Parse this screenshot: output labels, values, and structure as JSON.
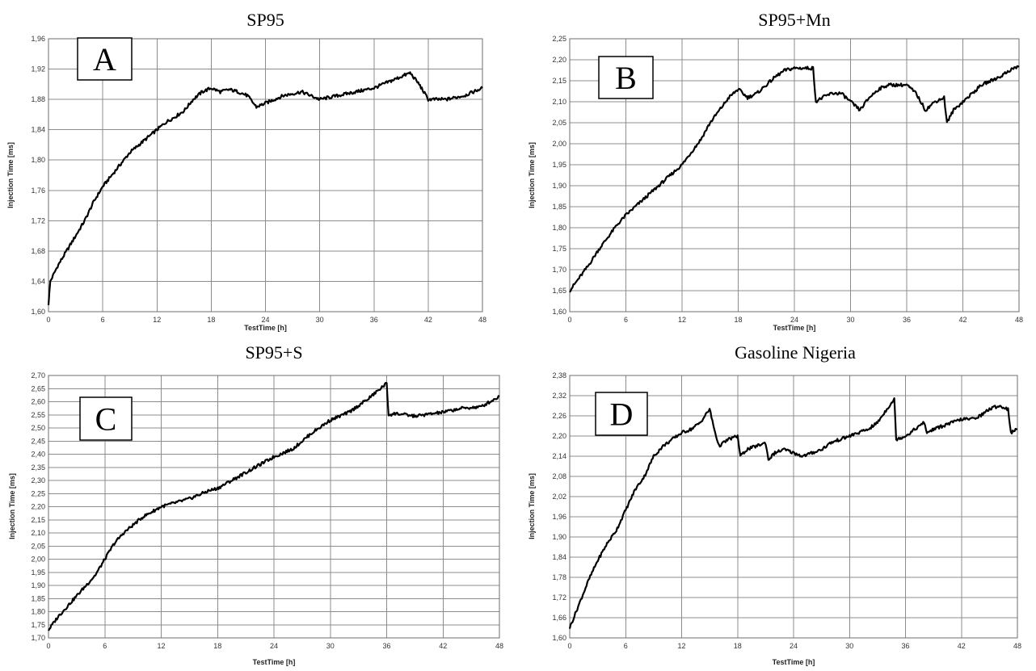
{
  "chart_data": [
    {
      "type": "line",
      "panel_title": "SP95",
      "letter": "A",
      "xlabel": "TestTime [h]",
      "ylabel": "Injection Time [ms]",
      "xlim": [
        0,
        48
      ],
      "ylim": [
        1.6,
        1.96
      ],
      "x_ticks": [
        "0",
        "6",
        "12",
        "18",
        "24",
        "30",
        "36",
        "42",
        "48"
      ],
      "y_ticks": [
        "1,60",
        "1,64",
        "1,68",
        "1,72",
        "1,76",
        "1,80",
        "1,84",
        "1,88",
        "1,92",
        "1,96"
      ],
      "grid": true,
      "series": [
        {
          "x": [
            0,
            0.2,
            1,
            2,
            3,
            4,
            5,
            6,
            7,
            8,
            9,
            10,
            11,
            12,
            13,
            14,
            15,
            16,
            17,
            18,
            19,
            20,
            21,
            22,
            23,
            24,
            26,
            28,
            30,
            32,
            34,
            36,
            38,
            39,
            40,
            41,
            42,
            44,
            46,
            47,
            48
          ],
          "y": [
            1.61,
            1.64,
            1.66,
            1.68,
            1.7,
            1.72,
            1.745,
            1.765,
            1.78,
            1.795,
            1.81,
            1.82,
            1.83,
            1.84,
            1.85,
            1.857,
            1.865,
            1.88,
            1.89,
            1.895,
            1.89,
            1.893,
            1.89,
            1.885,
            1.87,
            1.875,
            1.885,
            1.89,
            1.88,
            1.885,
            1.89,
            1.895,
            1.905,
            1.91,
            1.915,
            1.9,
            1.88,
            1.88,
            1.885,
            1.89,
            1.895
          ]
        }
      ]
    },
    {
      "type": "line",
      "panel_title": "SP95+Mn",
      "letter": "B",
      "xlabel": "TestTime [h]",
      "ylabel": "Injection Time [ms]",
      "xlim": [
        0,
        48
      ],
      "ylim": [
        1.6,
        2.25
      ],
      "x_ticks": [
        "0",
        "6",
        "12",
        "18",
        "24",
        "30",
        "36",
        "42",
        "48"
      ],
      "y_ticks": [
        "1,60",
        "1,65",
        "1,70",
        "1,75",
        "1,80",
        "1,85",
        "1,90",
        "1,95",
        "2,00",
        "2,05",
        "2,10",
        "2,15",
        "2,20",
        "2,25"
      ],
      "grid": true,
      "series": [
        {
          "x": [
            0,
            1,
            2,
            3,
            4,
            5,
            6,
            7,
            8,
            9,
            10,
            11,
            12,
            13,
            14,
            15,
            16,
            17,
            18,
            19,
            20,
            21,
            22,
            23,
            24,
            25,
            26,
            26.3,
            27,
            28,
            29,
            30,
            31,
            32,
            33,
            34,
            35,
            36,
            37,
            38,
            39,
            40,
            40.3,
            41,
            42,
            43,
            44,
            45,
            46,
            47,
            48
          ],
          "y": [
            1.65,
            1.68,
            1.71,
            1.745,
            1.775,
            1.805,
            1.83,
            1.85,
            1.87,
            1.89,
            1.91,
            1.93,
            1.95,
            1.98,
            2.01,
            2.05,
            2.08,
            2.11,
            2.13,
            2.11,
            2.12,
            2.14,
            2.16,
            2.175,
            2.18,
            2.18,
            2.18,
            2.1,
            2.11,
            2.12,
            2.12,
            2.1,
            2.08,
            2.11,
            2.13,
            2.14,
            2.14,
            2.14,
            2.12,
            2.08,
            2.1,
            2.11,
            2.05,
            2.08,
            2.1,
            2.12,
            2.14,
            2.15,
            2.16,
            2.175,
            2.185
          ]
        }
      ]
    },
    {
      "type": "line",
      "panel_title": "SP95+S",
      "letter": "C",
      "xlabel": "TestTime [h]",
      "ylabel": "Injection Time [ms]",
      "xlim": [
        0,
        48
      ],
      "ylim": [
        1.7,
        2.7
      ],
      "x_ticks": [
        "0",
        "6",
        "12",
        "18",
        "24",
        "30",
        "36",
        "42",
        "48"
      ],
      "y_ticks": [
        "1,70",
        "1,75",
        "1,80",
        "1,85",
        "1,90",
        "1,95",
        "2,00",
        "2,05",
        "2,10",
        "2,15",
        "2,20",
        "2,25",
        "2,30",
        "2,35",
        "2,40",
        "2,45",
        "2,50",
        "2,55",
        "2,60",
        "2,65",
        "2,70"
      ],
      "grid": true,
      "series": [
        {
          "x": [
            0,
            1,
            2,
            3,
            4,
            5,
            6,
            7,
            8,
            9,
            10,
            11,
            12,
            13,
            14,
            15,
            16,
            17,
            18,
            20,
            22,
            24,
            26,
            28,
            30,
            32,
            34,
            35,
            36,
            36.2,
            37,
            38,
            39,
            40,
            42,
            44,
            46,
            47,
            48
          ],
          "y": [
            1.73,
            1.78,
            1.82,
            1.86,
            1.9,
            1.94,
            2.0,
            2.06,
            2.1,
            2.13,
            2.16,
            2.18,
            2.2,
            2.21,
            2.22,
            2.23,
            2.245,
            2.26,
            2.27,
            2.31,
            2.35,
            2.39,
            2.42,
            2.48,
            2.53,
            2.56,
            2.61,
            2.64,
            2.67,
            2.55,
            2.555,
            2.55,
            2.545,
            2.55,
            2.56,
            2.575,
            2.58,
            2.6,
            2.62
          ]
        }
      ]
    },
    {
      "type": "line",
      "panel_title": "Gasoline Nigeria",
      "letter": "D",
      "xlabel": "TestTime [h]",
      "ylabel": "Injection Time [ms]",
      "xlim": [
        0,
        48
      ],
      "ylim": [
        1.6,
        2.38
      ],
      "x_ticks": [
        "0",
        "6",
        "12",
        "18",
        "24",
        "30",
        "36",
        "42",
        "48"
      ],
      "y_ticks": [
        "1,60",
        "1,66",
        "1,72",
        "1,78",
        "1,84",
        "1,90",
        "1,96",
        "2,02",
        "2,08",
        "2,14",
        "2,20",
        "2,26",
        "2,32",
        "2,38"
      ],
      "grid": true,
      "series": [
        {
          "x": [
            0,
            1,
            2,
            3,
            4,
            5,
            6,
            7,
            8,
            9,
            10,
            11,
            12,
            13,
            14,
            15,
            15.5,
            16,
            17,
            18,
            18.3,
            19,
            20,
            21,
            21.3,
            22,
            23,
            24,
            25,
            26,
            27,
            28,
            29,
            30,
            31,
            32,
            33,
            34,
            34.8,
            35,
            36,
            37,
            38,
            38.3,
            39,
            40,
            41,
            42,
            43,
            44,
            45,
            46,
            47,
            47.3,
            48
          ],
          "y": [
            1.63,
            1.7,
            1.77,
            1.83,
            1.88,
            1.92,
            1.98,
            2.04,
            2.08,
            2.14,
            2.17,
            2.19,
            2.21,
            2.22,
            2.24,
            2.28,
            2.22,
            2.17,
            2.19,
            2.2,
            2.14,
            2.16,
            2.17,
            2.18,
            2.13,
            2.15,
            2.16,
            2.15,
            2.14,
            2.15,
            2.16,
            2.18,
            2.19,
            2.2,
            2.21,
            2.22,
            2.24,
            2.28,
            2.31,
            2.19,
            2.2,
            2.22,
            2.24,
            2.21,
            2.22,
            2.23,
            2.24,
            2.25,
            2.25,
            2.26,
            2.28,
            2.29,
            2.28,
            2.21,
            2.22
          ]
        }
      ]
    }
  ]
}
